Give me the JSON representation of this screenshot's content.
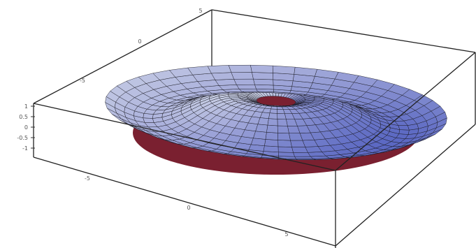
{
  "chart_data": {
    "type": "surface3d",
    "title": "",
    "xlabel": "",
    "ylabel": "",
    "zlabel": "",
    "surface": "rotationally symmetric ripple ring (sin-shaped radial profile)",
    "x_range": [
      -7,
      7
    ],
    "y_range": [
      -7,
      7
    ],
    "z_range": [
      -1,
      1
    ],
    "x_ticks": [
      "-5",
      "0",
      "5"
    ],
    "y_ticks": [
      "-5",
      "0",
      "5"
    ],
    "z_ticks": [
      "1",
      "0.5",
      "0",
      "-0.5",
      "-1"
    ],
    "box": true,
    "grid": false,
    "colors": {
      "surface_light": "#e9f0ef",
      "surface_mid": "#aab0dc",
      "surface_dark": "#5966c2",
      "underside": "#7a2030",
      "mesh": "#1a1a22"
    }
  }
}
